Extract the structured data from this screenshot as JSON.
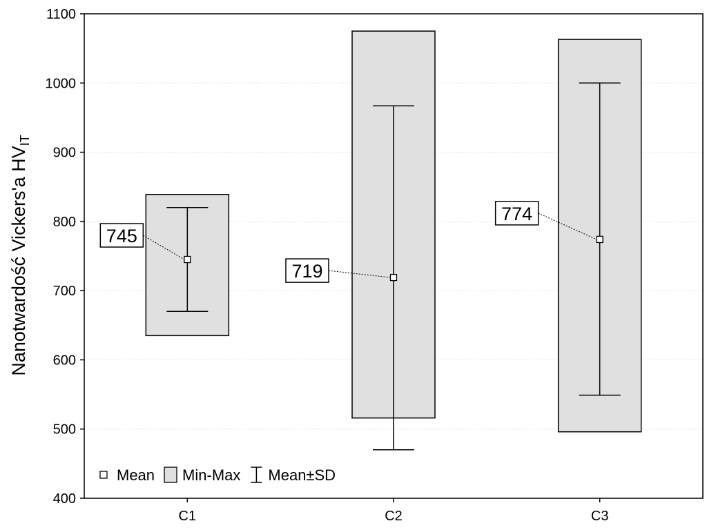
{
  "chart_data": {
    "type": "box",
    "ylabel": "Nanotwardość Vickers'a HV",
    "ylabel_subscript": "IT",
    "xlabel": "",
    "ylim": [
      400,
      1100
    ],
    "yticks": [
      400,
      500,
      600,
      700,
      800,
      900,
      1000,
      1100
    ],
    "grid": true,
    "categories": [
      "C1",
      "C2",
      "C3"
    ],
    "series": [
      {
        "category": "C1",
        "mean": 745,
        "min": 635,
        "max": 839,
        "sd_low": 670,
        "sd_high": 820,
        "mean_label": "745"
      },
      {
        "category": "C2",
        "mean": 719,
        "min": 516,
        "max": 1075,
        "sd_low": 470,
        "sd_high": 967,
        "mean_label": "719"
      },
      {
        "category": "C3",
        "mean": 774,
        "min": 496,
        "max": 1063,
        "sd_low": 549,
        "sd_high": 1000,
        "mean_label": "774"
      }
    ],
    "legend": {
      "placement": "bottom-left",
      "items": [
        {
          "label": "Mean",
          "symbol": "square-marker"
        },
        {
          "label": "Min-Max",
          "symbol": "gray-box"
        },
        {
          "label": "Mean±SD",
          "symbol": "whisker"
        }
      ]
    },
    "colors": {
      "box_fill": "#e0e0e0",
      "stroke": "#000000",
      "grid": "#d8d8d8",
      "background": "#ffffff"
    }
  }
}
